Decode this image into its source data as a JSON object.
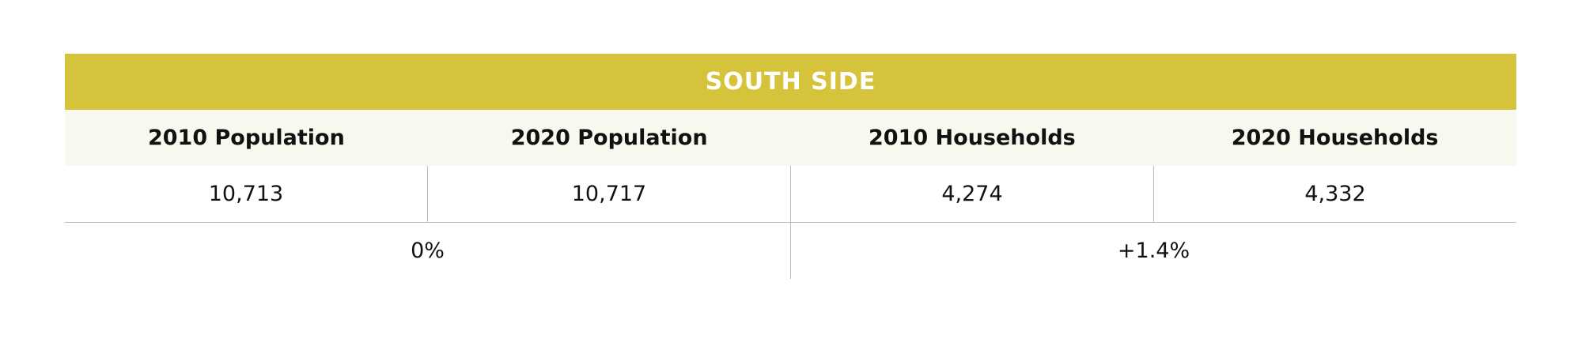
{
  "table": {
    "title": "SOUTH SIDE",
    "header": [
      "2010 Population",
      "2020 Population",
      "2010 Households",
      "2020 Households"
    ],
    "rows": [
      [
        "10,713",
        "10,717",
        "4,274",
        "4,332"
      ]
    ],
    "changes": [
      "0%",
      "+1.4%"
    ]
  }
}
